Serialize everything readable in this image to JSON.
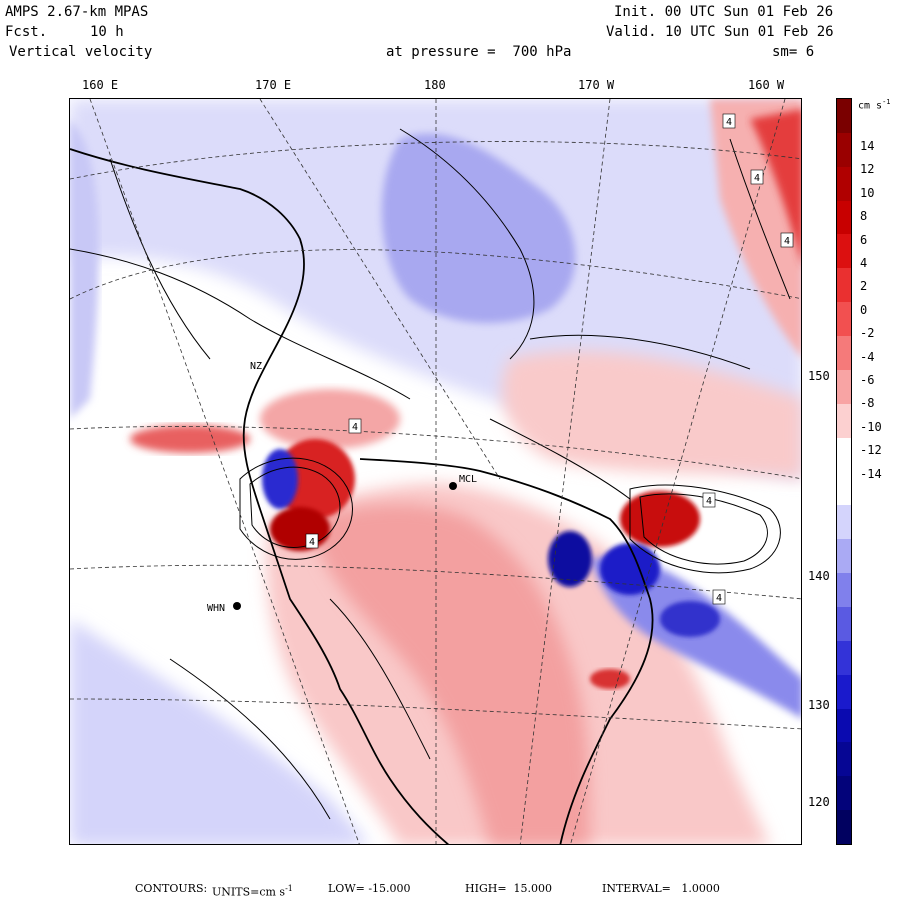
{
  "header": {
    "model": "AMPS 2.67-km MPAS",
    "fcst_label": "Fcst.",
    "fcst_value": "10 h",
    "field": "Vertical velocity",
    "init": "Init. 00 UTC Sun 01 Feb 26",
    "valid": "Valid. 10 UTC Sun 01 Feb 26",
    "pressure": "at pressure =  700 hPa",
    "smoothing": "sm= 6"
  },
  "axes": {
    "lon_ticks": [
      "160 E",
      "170 E",
      "180",
      "170 W",
      "160 W"
    ],
    "lat_ticks": [
      "150 W",
      "140 W",
      "130 W",
      "120 W"
    ]
  },
  "colorbar": {
    "units": "cm s",
    "units_sup": "-1",
    "labels": [
      "14",
      "12",
      "10",
      "8",
      "6",
      "4",
      "2",
      "0",
      "-2",
      "-4",
      "-6",
      "-8",
      "-10",
      "-12",
      "-14"
    ],
    "colors": [
      "#7a0000",
      "#9a0000",
      "#b00000",
      "#c80000",
      "#dc1010",
      "#ea3030",
      "#f25050",
      "#f57a7a",
      "#f8a4a4",
      "#fcd0d0",
      "#ffffff",
      "#ffffff",
      "#d4d4fc",
      "#aaaaf4",
      "#8080ec",
      "#5a5ae2",
      "#3333d8",
      "#1a1acc",
      "#0a0ab0",
      "#060694",
      "#03037a",
      "#010160"
    ]
  },
  "stations": [
    "WHN",
    "MCL",
    "NZ"
  ],
  "contour_label": "4",
  "footer": {
    "contours": "CONTOURS:",
    "units_label": "UNITS=cm s",
    "units_sup": "-1",
    "low": "LOW= -15.000",
    "high": "HIGH=  15.000",
    "interval": "INTERVAL=   1.0000"
  },
  "colors": {
    "pos_light": "#f9c8c8",
    "pos_mid": "#f08080",
    "pos_strong": "#d82020",
    "neg_light": "#d8d8fa",
    "neg_mid": "#9c9cee",
    "neg_strong": "#2020c8"
  }
}
